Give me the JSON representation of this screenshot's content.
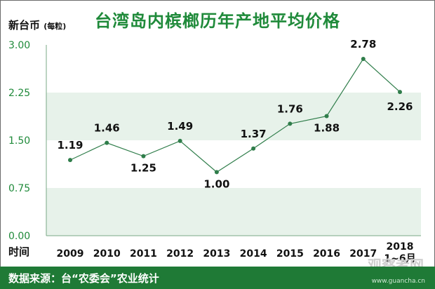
{
  "chart_data": {
    "type": "line",
    "title": "台湾岛内槟榔历年产地平均价格",
    "ylabel": "新台币",
    "ylabel_unit": "(每粒)",
    "xlabel": "时间",
    "categories": [
      "2009",
      "2010",
      "2011",
      "2012",
      "2013",
      "2014",
      "2015",
      "2016",
      "2017",
      "2018\n1~6月"
    ],
    "values": [
      1.19,
      1.46,
      1.25,
      1.49,
      1.0,
      1.37,
      1.76,
      1.88,
      2.78,
      2.26
    ],
    "ylim": [
      0,
      3
    ],
    "yticks": [
      "3.00",
      "2.25",
      "1.50",
      "0.75",
      "0.00"
    ],
    "line_color": "#2f7d4a",
    "band_color": "#e7f2ea",
    "accent_color": "#1f8a3a"
  },
  "footer": {
    "source": "数据来源：台“农委会”农业统计"
  },
  "watermark": {
    "brand": "观察者网",
    "url": "www.guancha.cn"
  }
}
